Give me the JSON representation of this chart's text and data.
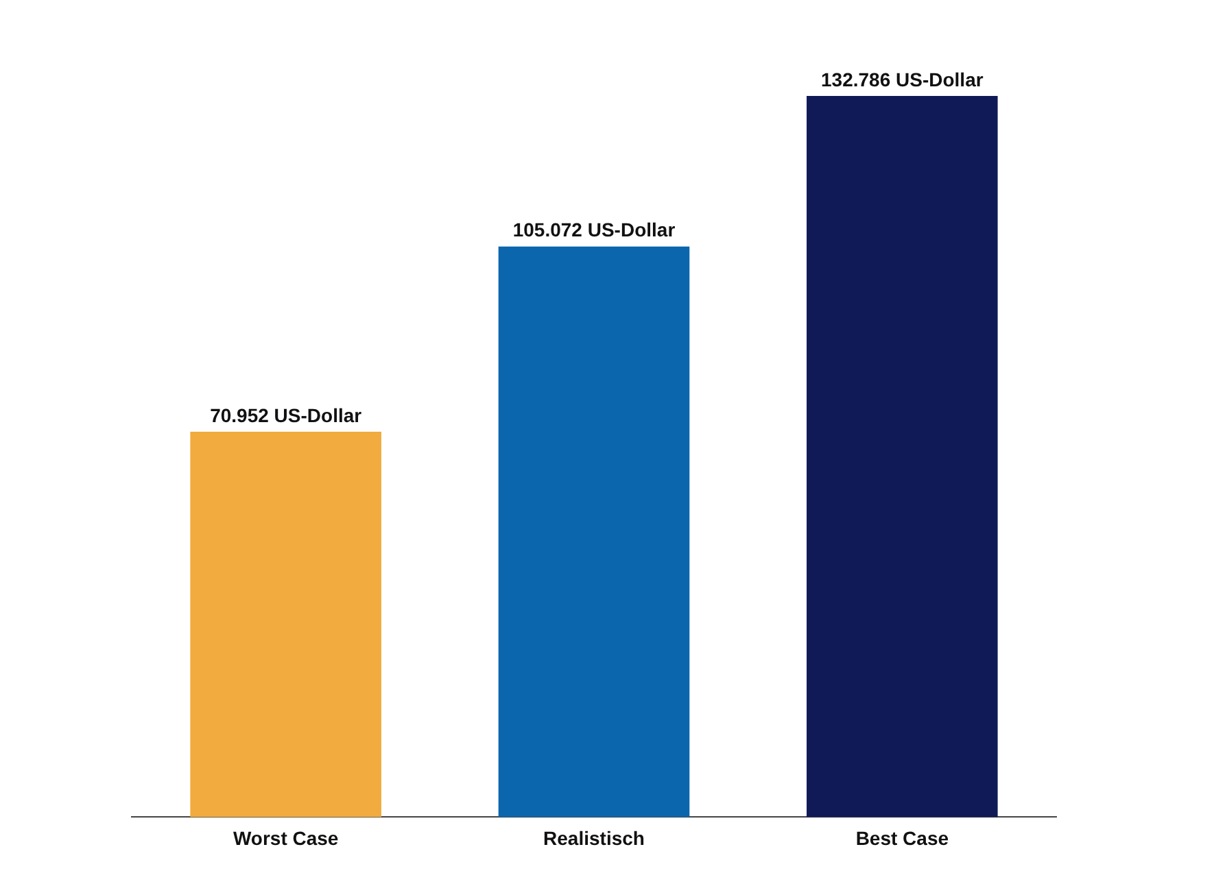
{
  "chart_data": {
    "type": "bar",
    "categories": [
      "Worst Case",
      "Realistisch",
      "Best Case"
    ],
    "values": [
      70952,
      105072,
      132786
    ],
    "colors": [
      "#f2ab3e",
      "#0b66ae",
      "#101a57"
    ],
    "value_labels": [
      "70.952 US-Dollar",
      "105.072 US-Dollar",
      "132.786 US-Dollar"
    ],
    "grid": false,
    "legend": false
  }
}
